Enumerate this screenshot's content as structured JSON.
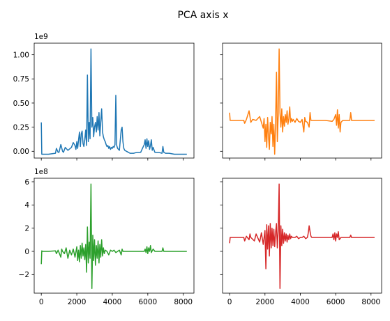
{
  "figure": {
    "title": "PCA axis x"
  },
  "chart_data": [
    {
      "type": "line",
      "panel": "top-left",
      "color": "#1f77b4",
      "offset_label": "1e9",
      "xlim": [
        -400,
        8600
      ],
      "ylim": [
        -0.07,
        1.12
      ],
      "yticks": [
        0.0,
        0.25,
        0.5,
        0.75,
        1.0
      ],
      "ytick_labels": [
        "0.00",
        "0.25",
        "0.50",
        "0.75",
        "1.00"
      ],
      "xticks": [
        0,
        2000,
        4000,
        6000,
        8000
      ],
      "xtick_labels": [],
      "series": [
        {
          "x": [
            0,
            30,
            60,
            400,
            800,
            850,
            950,
            1000,
            1100,
            1200,
            1250,
            1350,
            1500,
            1700,
            1800,
            1900,
            1950,
            2000,
            2050,
            2100,
            2150,
            2200,
            2250,
            2300,
            2350,
            2400,
            2450,
            2500,
            2550,
            2600,
            2650,
            2700,
            2750,
            2800,
            2850,
            2900,
            2950,
            3000,
            3050,
            3100,
            3150,
            3200,
            3250,
            3300,
            3350,
            3400,
            3450,
            3500,
            3550,
            3600,
            3650,
            3700,
            3750,
            3800,
            3850,
            3900,
            3950,
            4000,
            4050,
            4100,
            4150,
            4200,
            4250,
            4300,
            4400,
            4500,
            4550,
            4600,
            4650,
            4700,
            4800,
            4900,
            5000,
            5200,
            5400,
            5600,
            5700,
            5800,
            5850,
            5900,
            5950,
            6000,
            6050,
            6100,
            6150,
            6200,
            6250,
            6300,
            6400,
            6600,
            6800,
            6850,
            6900,
            7000,
            7200,
            7500,
            8000,
            8200
          ],
          "y": [
            0.3,
            -0.03,
            -0.03,
            -0.03,
            -0.02,
            0.03,
            -0.01,
            -0.01,
            0.07,
            0.0,
            -0.01,
            0.04,
            0.01,
            0.04,
            0.09,
            0.06,
            0.02,
            0.1,
            0.03,
            0.12,
            0.2,
            0.05,
            0.18,
            0.21,
            0.08,
            0.05,
            0.12,
            0.22,
            0.06,
            0.79,
            0.1,
            0.3,
            0.13,
            1.06,
            0.25,
            0.35,
            0.15,
            0.25,
            0.3,
            0.2,
            0.36,
            0.22,
            0.4,
            0.16,
            0.31,
            0.44,
            0.2,
            0.15,
            0.12,
            0.1,
            0.07,
            0.05,
            0.06,
            0.03,
            0.05,
            0.02,
            0.04,
            0.03,
            0.05,
            0.04,
            0.07,
            0.58,
            0.06,
            0.03,
            0.01,
            0.22,
            0.25,
            0.1,
            0.03,
            0.01,
            0.0,
            -0.01,
            -0.02,
            -0.02,
            -0.01,
            -0.01,
            0.03,
            0.07,
            0.12,
            0.03,
            0.13,
            0.05,
            0.11,
            0.02,
            0.06,
            0.12,
            0.01,
            0.04,
            -0.01,
            -0.01,
            -0.02,
            0.05,
            -0.01,
            -0.02,
            -0.02,
            -0.03,
            -0.03,
            -0.03
          ]
        }
      ]
    },
    {
      "type": "line",
      "panel": "top-right",
      "color": "#ff7f0e",
      "xlim": [
        -400,
        8600
      ],
      "ylim": [
        -0.07,
        1.12
      ],
      "yticks": [
        0.0,
        0.25,
        0.5,
        0.75,
        1.0
      ],
      "ytick_labels": [],
      "xticks": [
        0,
        2000,
        4000,
        6000,
        8000
      ],
      "xtick_labels": [],
      "series": [
        {
          "x": [
            0,
            30,
            60,
            400,
            800,
            850,
            950,
            1100,
            1200,
            1300,
            1500,
            1700,
            1800,
            1900,
            1950,
            2000,
            2050,
            2100,
            2150,
            2200,
            2250,
            2300,
            2350,
            2400,
            2450,
            2500,
            2550,
            2600,
            2650,
            2700,
            2750,
            2800,
            2850,
            2900,
            2950,
            3000,
            3050,
            3100,
            3150,
            3200,
            3250,
            3300,
            3350,
            3400,
            3450,
            3500,
            3550,
            3600,
            3700,
            3800,
            3900,
            4000,
            4100,
            4200,
            4250,
            4300,
            4400,
            4500,
            4550,
            4600,
            4700,
            5000,
            5400,
            5800,
            5900,
            6000,
            6050,
            6100,
            6150,
            6200,
            6250,
            6300,
            6400,
            6800,
            6850,
            6900,
            7000,
            7500,
            8200
          ],
          "y": [
            0.4,
            0.32,
            0.32,
            0.32,
            0.32,
            0.29,
            0.33,
            0.42,
            0.3,
            0.33,
            0.32,
            0.36,
            0.3,
            0.24,
            0.34,
            0.1,
            0.28,
            0.04,
            0.35,
            0.15,
            0.02,
            0.3,
            0.18,
            0.36,
            0.05,
            0.28,
            -0.03,
            0.3,
            0.82,
            0.1,
            0.38,
            1.06,
            0.4,
            0.25,
            0.44,
            0.2,
            0.36,
            0.26,
            0.38,
            0.3,
            0.42,
            0.28,
            0.34,
            0.46,
            0.3,
            0.34,
            0.31,
            0.33,
            0.3,
            0.34,
            0.31,
            0.3,
            0.33,
            0.2,
            0.35,
            0.31,
            0.3,
            0.25,
            0.4,
            0.32,
            0.32,
            0.32,
            0.32,
            0.31,
            0.33,
            0.38,
            0.27,
            0.43,
            0.24,
            0.38,
            0.2,
            0.3,
            0.32,
            0.32,
            0.4,
            0.32,
            0.32,
            0.32,
            0.32
          ]
        }
      ]
    },
    {
      "type": "line",
      "panel": "bottom-left",
      "color": "#2ca02c",
      "offset_label": "1e8",
      "xlim": [
        -400,
        8600
      ],
      "ylim": [
        -3.6,
        6.3
      ],
      "yticks": [
        -2,
        0,
        2,
        4,
        6
      ],
      "ytick_labels": [
        "−2",
        "0",
        "2",
        "4",
        "6"
      ],
      "xticks": [
        0,
        2000,
        4000,
        6000,
        8000
      ],
      "xtick_labels": [
        "0",
        "2000",
        "4000",
        "6000",
        "8000"
      ],
      "series": [
        {
          "x": [
            0,
            30,
            60,
            400,
            800,
            850,
            950,
            1100,
            1150,
            1200,
            1300,
            1400,
            1500,
            1600,
            1700,
            1800,
            1900,
            2000,
            2050,
            2100,
            2150,
            2200,
            2250,
            2300,
            2350,
            2400,
            2450,
            2500,
            2550,
            2600,
            2650,
            2700,
            2750,
            2800,
            2850,
            2900,
            2950,
            3000,
            3050,
            3100,
            3150,
            3200,
            3250,
            3300,
            3350,
            3400,
            3450,
            3500,
            3550,
            3600,
            3700,
            3800,
            3900,
            4000,
            4100,
            4200,
            4300,
            4400,
            4500,
            4550,
            4600,
            4700,
            5000,
            5400,
            5800,
            5850,
            5900,
            5950,
            6000,
            6050,
            6100,
            6150,
            6200,
            6300,
            6400,
            6800,
            6850,
            6900,
            7000,
            7500,
            8200
          ],
          "y": [
            -1.1,
            0.05,
            0.0,
            0.0,
            0.05,
            -0.2,
            0.1,
            -0.5,
            0.2,
            0.0,
            -0.2,
            0.3,
            -0.6,
            0.1,
            -0.3,
            0.2,
            -0.5,
            0.4,
            -0.8,
            0.1,
            -0.9,
            0.5,
            -0.6,
            0.7,
            -0.4,
            0.3,
            -0.7,
            0.6,
            -1.8,
            2.1,
            -1.0,
            0.8,
            -0.6,
            5.8,
            -3.2,
            1.4,
            -0.8,
            1.0,
            -1.2,
            0.5,
            -0.6,
            0.9,
            -1.0,
            0.6,
            -0.5,
            1.0,
            -0.4,
            0.3,
            -0.2,
            0.1,
            0.0,
            -0.3,
            0.1,
            0.0,
            0.1,
            -0.1,
            0.0,
            0.1,
            -0.3,
            0.2,
            0.0,
            0.0,
            0.0,
            0.0,
            0.0,
            0.2,
            -0.1,
            0.4,
            -0.2,
            0.3,
            0.0,
            0.5,
            -0.1,
            0.2,
            0.0,
            0.0,
            0.3,
            0.0,
            0.0,
            0.0,
            0.0
          ]
        }
      ]
    },
    {
      "type": "line",
      "panel": "bottom-right",
      "color": "#d62728",
      "xlim": [
        -400,
        8600
      ],
      "ylim": [
        -3.6,
        6.3
      ],
      "yticks": [
        -2,
        0,
        2,
        4,
        6
      ],
      "ytick_labels": [],
      "xticks": [
        0,
        2000,
        4000,
        6000,
        8000
      ],
      "xtick_labels": [
        "0",
        "2000",
        "4000",
        "6000",
        "8000"
      ],
      "series": [
        {
          "x": [
            0,
            30,
            60,
            400,
            800,
            850,
            950,
            1100,
            1150,
            1200,
            1400,
            1500,
            1700,
            1800,
            1900,
            2000,
            2050,
            2100,
            2150,
            2200,
            2250,
            2300,
            2350,
            2400,
            2450,
            2500,
            2550,
            2600,
            2650,
            2700,
            2750,
            2800,
            2850,
            2900,
            2950,
            3000,
            3050,
            3100,
            3150,
            3200,
            3250,
            3300,
            3350,
            3400,
            3450,
            3500,
            3550,
            3600,
            3700,
            3800,
            3900,
            4000,
            4100,
            4200,
            4300,
            4400,
            4450,
            4500,
            4550,
            4600,
            4650,
            4700,
            4800,
            5000,
            5400,
            5800,
            5850,
            5900,
            5950,
            6000,
            6050,
            6100,
            6150,
            6200,
            6300,
            6400,
            6800,
            6850,
            6900,
            7000,
            7500,
            8200
          ],
          "y": [
            0.7,
            1.2,
            1.2,
            1.2,
            1.2,
            0.9,
            1.3,
            1.0,
            1.5,
            1.2,
            0.9,
            1.5,
            0.8,
            1.6,
            0.6,
            1.8,
            -1.5,
            2.3,
            0.2,
            2.2,
            -0.4,
            2.4,
            0.3,
            2.0,
            0.5,
            1.9,
            0.4,
            1.6,
            2.4,
            0.3,
            1.8,
            5.8,
            -3.2,
            2.2,
            0.5,
            1.9,
            0.7,
            1.6,
            0.9,
            1.5,
            0.8,
            1.4,
            1.0,
            1.5,
            1.1,
            1.3,
            1.2,
            1.2,
            1.2,
            1.3,
            1.1,
            1.2,
            1.2,
            1.3,
            1.1,
            1.2,
            1.6,
            2.2,
            1.7,
            1.3,
            1.2,
            1.2,
            1.2,
            1.2,
            1.2,
            1.2,
            1.5,
            1.0,
            1.6,
            0.9,
            1.5,
            1.2,
            1.7,
            1.0,
            1.2,
            1.2,
            1.2,
            1.4,
            1.2,
            1.2,
            1.2,
            1.2
          ]
        }
      ]
    }
  ]
}
